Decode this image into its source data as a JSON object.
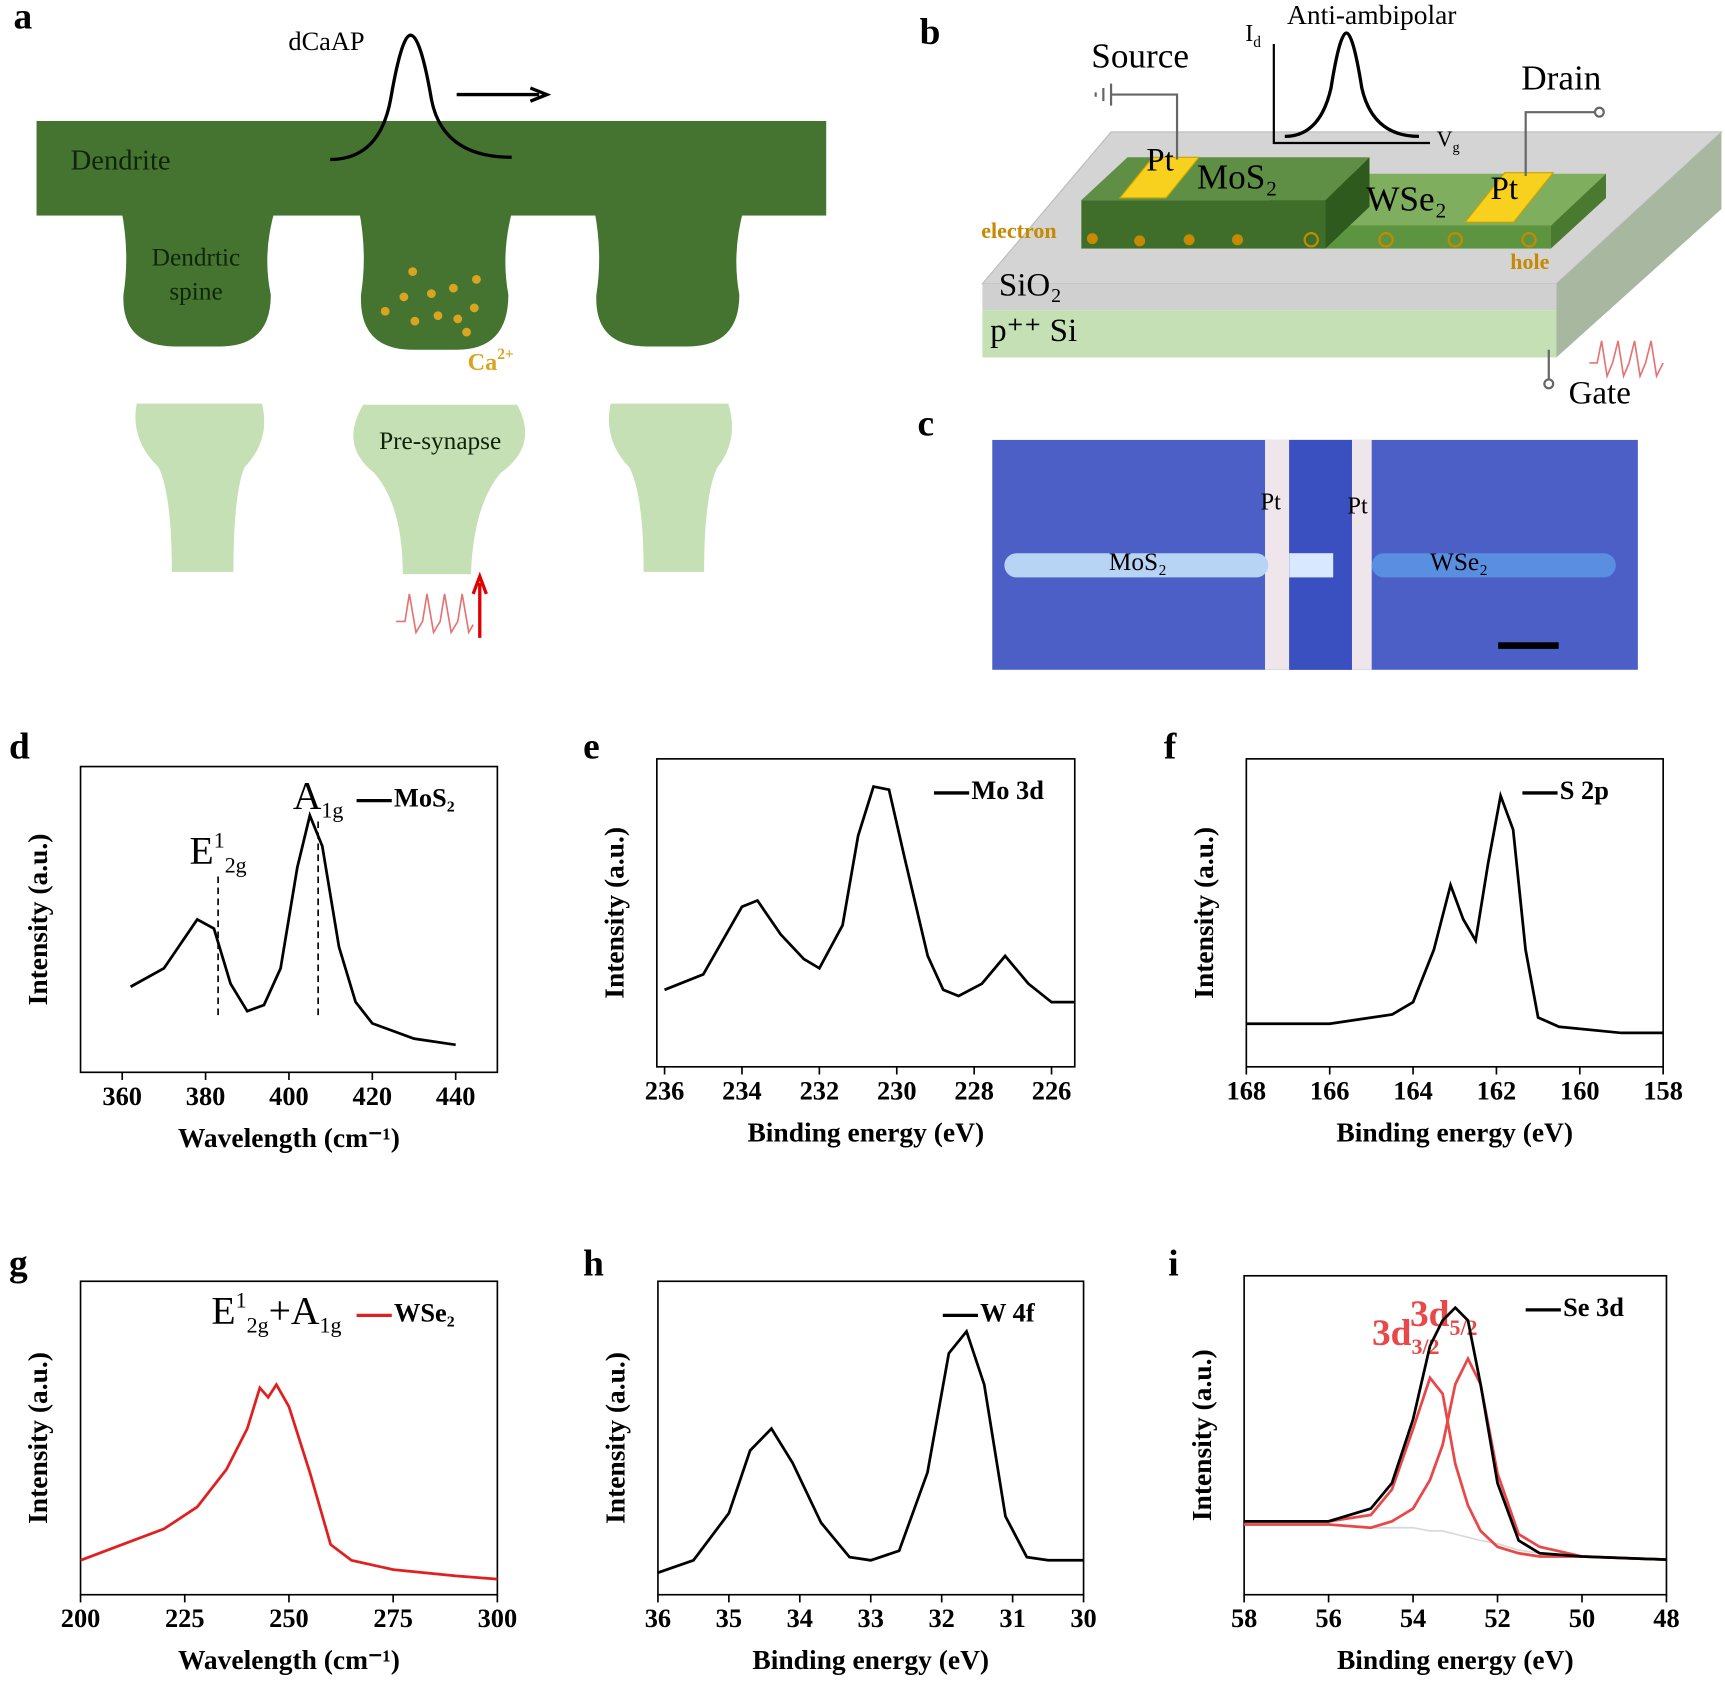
{
  "panel_a": {
    "label": "a",
    "pulse": "dCaAP",
    "dendrite": "Dendrite",
    "spine": [
      "Dendrtic",
      "spine"
    ],
    "ion": {
      "base": "Ca",
      "sup": "2+"
    },
    "presynapse": "Pre-synapse"
  },
  "panel_b": {
    "label": "b",
    "source": "Source",
    "inset_title": "Anti-ambipolar",
    "inset_y": {
      "base": "I",
      "sub": "d"
    },
    "inset_x": {
      "base": "V",
      "sub": "g"
    },
    "drain": "Drain",
    "pt": [
      "Pt",
      "Pt"
    ],
    "mos2": "MoS₂",
    "wse2": "WSe₂",
    "electron": "electron",
    "hole": "hole",
    "sio2": "SiO₂",
    "si": "p⁺⁺ Si",
    "gate": "Gate"
  },
  "panel_c": {
    "label": "c",
    "pt": [
      "Pt",
      "Pt"
    ],
    "mos2": "MoS₂",
    "wse2": "WSe₂"
  },
  "chart_data": [
    {
      "type": "line",
      "label": "d",
      "xlabel": "Wavelength (cm⁻¹)",
      "ylabel": "Intensity (a.u.)",
      "xlim": [
        350,
        450
      ],
      "ylim": [
        0,
        100
      ],
      "xticks": [
        360,
        380,
        400,
        420,
        440
      ],
      "x": [
        362,
        370,
        378,
        382,
        386,
        390,
        394,
        398,
        402,
        405,
        408,
        412,
        416,
        420,
        430,
        440
      ],
      "series": [
        {
          "name": "MoS₂",
          "color": "#000000",
          "values": [
            28,
            34,
            50,
            47,
            29,
            20,
            22,
            34,
            67,
            84,
            74,
            41,
            23,
            16,
            11,
            9
          ]
        }
      ],
      "peak_markers": [
        {
          "x": 383,
          "dashed": true,
          "parts": [
            {
              "t": "E"
            },
            {
              "t": "1",
              "s": "sup"
            },
            {
              "t": "2g",
              "s": "sub"
            }
          ]
        },
        {
          "x": 407,
          "dashed": true,
          "parts": [
            {
              "t": "A"
            },
            {
              "t": "1g",
              "s": "sub"
            }
          ]
        }
      ]
    },
    {
      "type": "line",
      "label": "e",
      "xlabel": "Binding energy (eV)",
      "ylabel": "Intensity (a.u.)",
      "xlim": [
        236.2,
        225.4
      ],
      "ylim": [
        0,
        100
      ],
      "xticks": [
        236,
        234,
        232,
        230,
        228,
        226
      ],
      "x": [
        236,
        235,
        234,
        233.6,
        233,
        232.4,
        232,
        231.4,
        231,
        230.6,
        230.2,
        229.8,
        229.2,
        228.8,
        228.4,
        227.8,
        227.2,
        226.6,
        226,
        225.4
      ],
      "series": [
        {
          "name": "Mo 3d",
          "color": "#000000",
          "values": [
            25,
            30,
            52,
            54,
            43,
            35,
            32,
            46,
            75,
            91,
            90,
            68,
            36,
            25,
            23,
            27,
            36,
            27,
            21,
            21
          ]
        }
      ]
    },
    {
      "type": "line",
      "label": "f",
      "xlabel": "Binding energy (eV)",
      "ylabel": "Intensity (a.u.)",
      "xlim": [
        168,
        158
      ],
      "ylim": [
        0,
        100
      ],
      "xticks": [
        168,
        166,
        164,
        162,
        160,
        158
      ],
      "x": [
        168,
        166,
        164.5,
        164,
        163.5,
        163.1,
        162.8,
        162.5,
        162.2,
        161.9,
        161.6,
        161.3,
        161,
        160.5,
        159,
        158
      ],
      "series": [
        {
          "name": "S 2p",
          "color": "#000000",
          "values": [
            14,
            14,
            17,
            21,
            38,
            59,
            48,
            41,
            66,
            88,
            77,
            38,
            16,
            13,
            11,
            11
          ]
        }
      ]
    },
    {
      "type": "line",
      "label": "g",
      "xlabel": "Wavelength (cm⁻¹)",
      "ylabel": "Intensity (a.u.)",
      "xlim": [
        200,
        300
      ],
      "ylim": [
        0,
        100
      ],
      "xticks": [
        200,
        225,
        250,
        275,
        300
      ],
      "x": [
        200,
        210,
        220,
        228,
        235,
        240,
        243,
        245,
        247,
        250,
        255,
        260,
        265,
        275,
        290,
        300
      ],
      "series": [
        {
          "name": "WSe₂",
          "color": "#e02020",
          "values": [
            11,
            16,
            21,
            28,
            40,
            53,
            66,
            63,
            67,
            60,
            39,
            16,
            11,
            8,
            6,
            5
          ]
        }
      ],
      "peak_markers": [
        {
          "x": 247,
          "dashed": false,
          "parts": [
            {
              "t": "E"
            },
            {
              "t": "1",
              "s": "sup"
            },
            {
              "t": "2g",
              "s": "sub"
            },
            {
              "t": "+A"
            },
            {
              "t": "1g",
              "s": "sub"
            }
          ]
        }
      ]
    },
    {
      "type": "line",
      "label": "h",
      "xlabel": "Binding energy (eV)",
      "ylabel": "Intensity (a.u.)",
      "xlim": [
        36,
        30
      ],
      "ylim": [
        0,
        100
      ],
      "xticks": [
        36,
        35,
        34,
        33,
        32,
        31,
        30
      ],
      "x": [
        36,
        35.5,
        35,
        34.7,
        34.4,
        34.1,
        33.7,
        33.3,
        33,
        32.6,
        32.2,
        31.9,
        31.65,
        31.4,
        31.1,
        30.8,
        30.5,
        30
      ],
      "series": [
        {
          "name": "W 4f",
          "color": "#000000",
          "values": [
            7,
            11,
            26,
            46,
            53,
            42,
            23,
            12,
            11,
            14,
            39,
            77,
            84,
            67,
            25,
            12,
            11,
            11
          ]
        }
      ]
    },
    {
      "type": "line",
      "label": "i",
      "xlabel": "Binding energy (eV)",
      "ylabel": "Intensity (a.u.)",
      "xlim": [
        58,
        48
      ],
      "ylim": [
        0,
        100
      ],
      "xticks": [
        58,
        56,
        54,
        52,
        50,
        48
      ],
      "x": [
        58,
        56,
        55,
        54.5,
        54,
        53.6,
        53.3,
        53,
        52.7,
        52.4,
        52,
        51.5,
        51,
        50,
        48
      ],
      "series": [
        {
          "color": "#d8d8d8",
          "values": [
            22,
            22,
            21,
            21,
            21,
            20,
            20,
            19,
            18,
            17,
            16,
            14,
            13,
            12,
            11
          ]
        },
        {
          "name": "3d",
          "sub": "3/2",
          "color": "#e84848",
          "values": [
            23,
            23,
            25,
            33,
            52,
            68,
            63,
            41,
            28,
            20,
            15,
            13,
            12,
            12,
            11
          ]
        },
        {
          "name": "3d",
          "sub": "5/2",
          "color": "#e84848",
          "values": [
            22,
            22,
            21,
            23,
            27,
            36,
            47,
            66,
            74,
            66,
            38,
            19,
            15,
            12,
            11
          ]
        },
        {
          "name": "Se 3d",
          "color": "#000000",
          "values": [
            23,
            23,
            27,
            35,
            55,
            78,
            86,
            90,
            86,
            66,
            35,
            17,
            13,
            12,
            11
          ]
        }
      ]
    }
  ]
}
